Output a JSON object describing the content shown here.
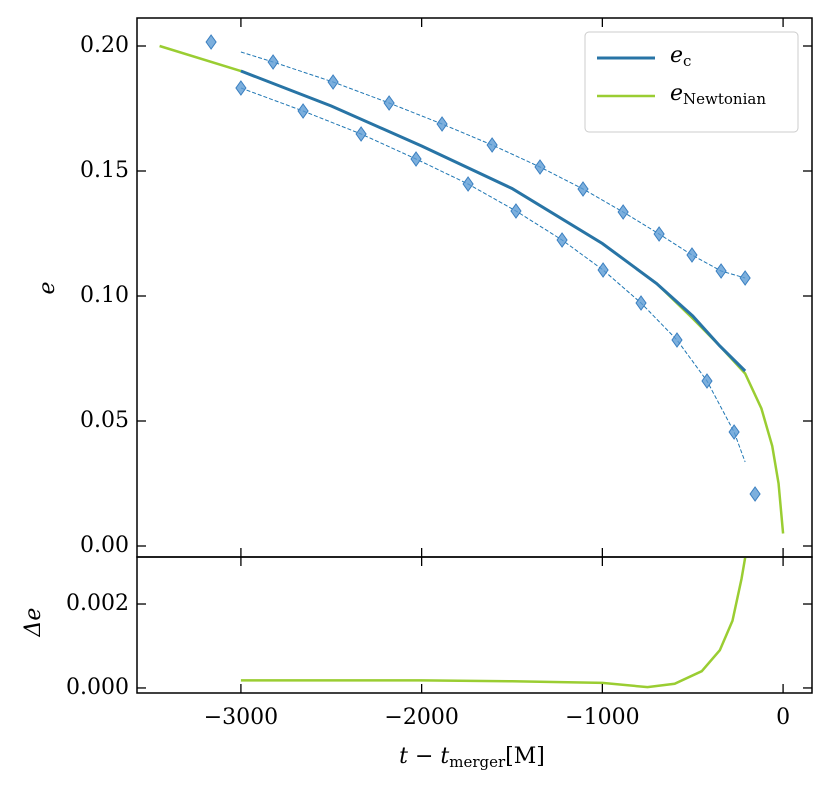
{
  "chart_data": [
    {
      "type": "line",
      "ylabel": "e",
      "xlim": [
        -3575,
        160
      ],
      "ylim": [
        -0.0044,
        0.2112
      ],
      "xticks": [
        -3000,
        -2000,
        -1000,
        0
      ],
      "yticks": [
        {
          "value": 0,
          "label": "0.00"
        },
        {
          "value": 0.05,
          "label": "0.05"
        },
        {
          "value": 0.1,
          "label": "0.10"
        },
        {
          "value": 0.15,
          "label": "0.15"
        },
        {
          "value": 0.2,
          "label": "0.20"
        }
      ],
      "legend": "upper right",
      "series": [
        {
          "color": "#1f77b4",
          "linestyle": "dashed",
          "x": [
            -3000,
            -2822,
            -2490,
            -2180,
            -1887,
            -1610,
            -1345,
            -1107,
            -885,
            -686,
            -504,
            -343,
            -210
          ],
          "values": [
            0.1976,
            0.1936,
            0.1856,
            0.1772,
            0.1688,
            0.1604,
            0.1516,
            0.1428,
            0.1336,
            0.1248,
            0.1164,
            0.11,
            0.1072
          ]
        },
        {
          "color": "#1f77b4",
          "linestyle": "dashed",
          "x": [
            -3000,
            -2656,
            -2335,
            -2031,
            -1743,
            -1478,
            -1223,
            -996,
            -786,
            -587,
            -421,
            -271,
            -210
          ],
          "values": [
            0.1832,
            0.174,
            0.1648,
            0.1548,
            0.1448,
            0.134,
            0.1224,
            0.1104,
            0.0972,
            0.0824,
            0.066,
            0.0456,
            0.0336
          ]
        },
        {
          "color": "#5b9bd5",
          "marker": "diamond",
          "x": [
            -3165,
            -2822,
            -2490,
            -2180,
            -1887,
            -1610,
            -1345,
            -1107,
            -885,
            -686,
            -504,
            -343,
            -210
          ],
          "values": [
            0.2016,
            0.1936,
            0.1856,
            0.1772,
            0.1688,
            0.1604,
            0.1516,
            0.1428,
            0.1336,
            0.1248,
            0.1164,
            0.11,
            0.1072
          ]
        },
        {
          "color": "#5b9bd5",
          "marker": "diamond",
          "x": [
            -3000,
            -2656,
            -2335,
            -2031,
            -1743,
            -1478,
            -1223,
            -996,
            -786,
            -587,
            -421,
            -271,
            -155
          ],
          "values": [
            0.1832,
            0.174,
            0.1648,
            0.1548,
            0.1448,
            0.134,
            0.1224,
            0.1104,
            0.0972,
            0.0824,
            0.066,
            0.0456,
            0.0208
          ]
        },
        {
          "name": "e",
          "name_sub": "c",
          "color": "#2874a6",
          "linestyle": "solid",
          "width": 3,
          "x": [
            -3000,
            -2500,
            -2000,
            -1500,
            -1000,
            -700,
            -500,
            -350,
            -210
          ],
          "values": [
            0.19,
            0.176,
            0.16,
            0.143,
            0.121,
            0.105,
            0.092,
            0.08,
            0.07
          ]
        },
        {
          "name": "e",
          "name_sub": "Newtonian",
          "color": "#9acd32",
          "linestyle": "solid",
          "width": 2.5,
          "under": true,
          "x": [
            -3450,
            -3000,
            -2500,
            -2000,
            -1500,
            -1000,
            -700,
            -500,
            -350,
            -210,
            -120,
            -60,
            -25,
            0
          ],
          "values": [
            0.2,
            0.19,
            0.176,
            0.16,
            0.143,
            0.121,
            0.105,
            0.091,
            0.08,
            0.069,
            0.055,
            0.04,
            0.025,
            0.005
          ]
        }
      ]
    },
    {
      "type": "line",
      "ylabel": "Δe",
      "xlabel": {
        "main": "t − t",
        "sub": "merger",
        "tail": "[M]"
      },
      "xlim": [
        -3575,
        160
      ],
      "ylim": [
        -0.00012,
        0.00312
      ],
      "xticks": [
        {
          "value": -3000,
          "label": "−3000"
        },
        {
          "value": -2000,
          "label": "−2000"
        },
        {
          "value": -1000,
          "label": "−1000"
        },
        {
          "value": 0,
          "label": "0"
        }
      ],
      "yticks": [
        {
          "value": 0,
          "label": "0.000"
        },
        {
          "value": 0.002,
          "label": "0.002"
        }
      ],
      "series": [
        {
          "color": "#9acd32",
          "linestyle": "solid",
          "width": 2.5,
          "x": [
            -3000,
            -2000,
            -1500,
            -1000,
            -750,
            -600,
            -450,
            -350,
            -280,
            -230,
            -210
          ],
          "values": [
            0.00018,
            0.00018,
            0.00016,
            0.00012,
            2e-05,
            0.0001,
            0.0004,
            0.0009,
            0.0016,
            0.0026,
            0.0031
          ]
        }
      ]
    }
  ]
}
